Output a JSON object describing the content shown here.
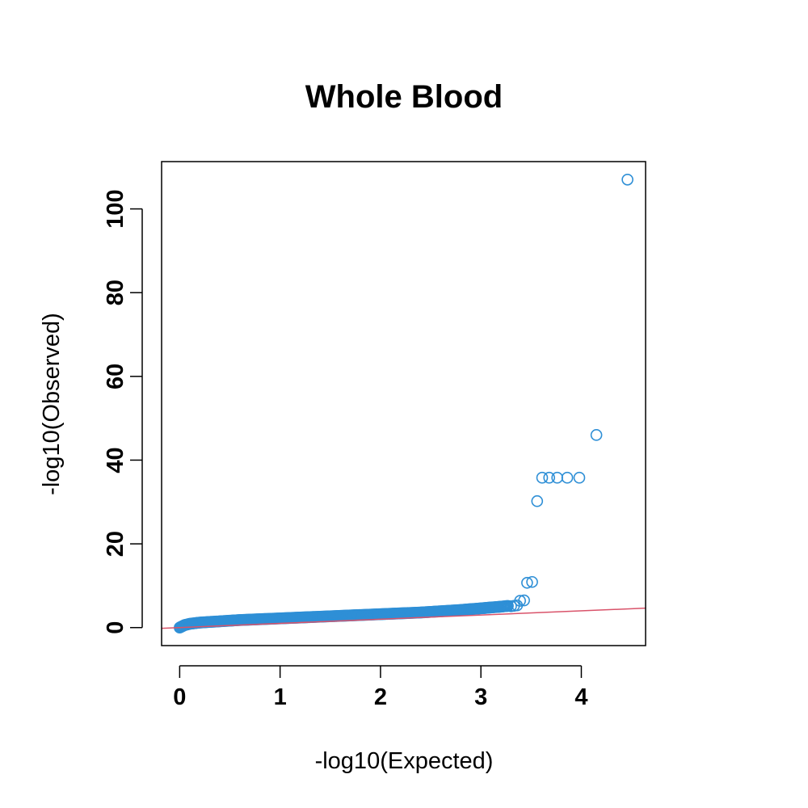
{
  "chart_data": {
    "type": "scatter",
    "title": "Whole Blood",
    "xlabel": "-log10(Expected)",
    "ylabel": "-log10(Observed)",
    "xlim": [
      -0.18,
      4.64
    ],
    "ylim": [
      -4.3,
      111.3
    ],
    "xticks": [
      0,
      1,
      2,
      3,
      4
    ],
    "yticks": [
      0,
      20,
      40,
      60,
      80,
      100
    ],
    "grid": false,
    "legend": "none",
    "point_color": "#2e8fd6",
    "reference_line": {
      "slope": 1,
      "intercept": 0,
      "color": "#d9536a"
    },
    "dense_trend": [
      [
        0.0,
        0.0
      ],
      [
        0.05,
        0.6
      ],
      [
        0.1,
        0.9
      ],
      [
        0.2,
        1.2
      ],
      [
        0.4,
        1.5
      ],
      [
        0.6,
        1.8
      ],
      [
        0.8,
        2.0
      ],
      [
        1.0,
        2.2
      ],
      [
        1.2,
        2.4
      ],
      [
        1.4,
        2.6
      ],
      [
        1.6,
        2.8
      ],
      [
        1.8,
        3.0
      ],
      [
        2.0,
        3.2
      ],
      [
        2.2,
        3.4
      ],
      [
        2.4,
        3.6
      ],
      [
        2.6,
        3.9
      ],
      [
        2.8,
        4.2
      ],
      [
        3.0,
        4.6
      ],
      [
        3.1,
        4.8
      ],
      [
        3.2,
        5.0
      ],
      [
        3.28,
        5.2
      ]
    ],
    "points": [
      [
        3.3,
        5.1
      ],
      [
        3.33,
        5.2
      ],
      [
        3.36,
        5.3
      ],
      [
        3.39,
        6.4
      ],
      [
        3.43,
        6.5
      ],
      [
        3.46,
        10.7
      ],
      [
        3.51,
        10.9
      ],
      [
        3.56,
        30.2
      ],
      [
        3.61,
        35.8
      ],
      [
        3.68,
        35.8
      ],
      [
        3.76,
        35.8
      ],
      [
        3.86,
        35.8
      ],
      [
        3.98,
        35.8
      ],
      [
        4.15,
        46.0
      ],
      [
        4.46,
        107.0
      ]
    ]
  }
}
